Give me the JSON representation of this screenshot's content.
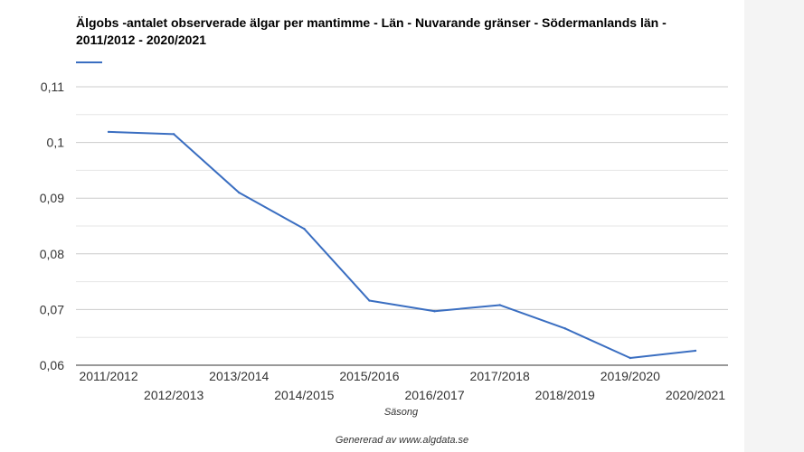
{
  "footer": {
    "credit": "Genererad av www.algdata.se"
  },
  "chart_data": {
    "type": "line",
    "title": "Älgobs -antalet observerade älgar per mantimme - Län - Nuvarande gränser - Södermanlands län - 2011/2012 - 2020/2021",
    "xlabel": "Säsong",
    "ylabel": "",
    "categories": [
      "2011/2012",
      "2012/2013",
      "2013/2014",
      "2014/2015",
      "2015/2016",
      "2016/2017",
      "2017/2018",
      "2018/2019",
      "2019/2020",
      "2020/2021"
    ],
    "series": [
      {
        "values": [
          0.1019,
          0.1015,
          0.091,
          0.0845,
          0.0716,
          0.0697,
          0.0708,
          0.0666,
          0.0613,
          0.0626
        ],
        "color": "#3a6ec1"
      }
    ],
    "ylim": [
      0.06,
      0.11
    ],
    "yticks": [
      0.06,
      0.07,
      0.08,
      0.09,
      0.1,
      0.11
    ],
    "ytick_labels": [
      "0,06",
      "0,07",
      "0,08",
      "0,09",
      "0,1",
      "0,11"
    ],
    "grid": true,
    "legend": "top-left",
    "colors": {
      "grid_major": "#cccccc",
      "grid_minor": "#e6e6e6",
      "axis": "#333333"
    }
  }
}
